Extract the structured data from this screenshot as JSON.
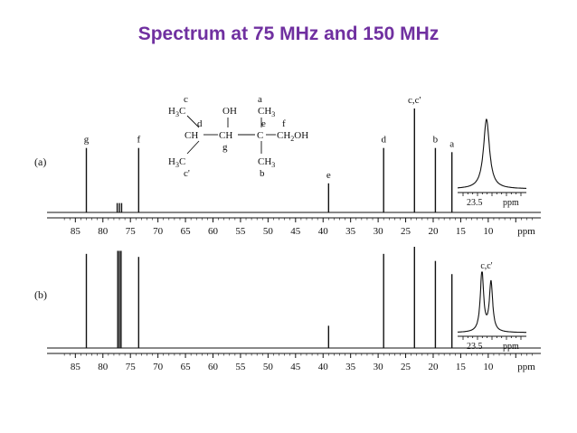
{
  "title": "Spectrum at 75 MHz and 150 MHz",
  "chart_data": [
    {
      "type": "line",
      "panel_label": "(a)",
      "x_unit": "ppm",
      "xlim": [
        87,
        2
      ],
      "x_ticks": [
        85,
        80,
        75,
        70,
        65,
        60,
        55,
        50,
        45,
        40,
        35,
        30,
        25,
        20,
        15,
        10
      ],
      "peaks": [
        {
          "ppm": 83.0,
          "height": 0.62,
          "label": "g"
        },
        {
          "ppm": 77.4,
          "height": 0.09,
          "label": ""
        },
        {
          "ppm": 77.0,
          "height": 0.09,
          "label": ""
        },
        {
          "ppm": 76.6,
          "height": 0.09,
          "label": ""
        },
        {
          "ppm": 73.5,
          "height": 0.62,
          "label": "f"
        },
        {
          "ppm": 39.0,
          "height": 0.28,
          "label": "e"
        },
        {
          "ppm": 29.0,
          "height": 0.62,
          "label": "d"
        },
        {
          "ppm": 23.4,
          "height": 1.0,
          "label": "c,c'"
        },
        {
          "ppm": 19.6,
          "height": 0.62,
          "label": "b"
        },
        {
          "ppm": 16.6,
          "height": 0.58,
          "label": "a"
        }
      ],
      "inset": {
        "peak_label": "",
        "x_tick": "23.5",
        "unit": "ppm",
        "type": "single"
      },
      "structure": {
        "row1": [
          "c",
          "a"
        ],
        "row2": [
          "H3C",
          "OH",
          "CH3"
        ],
        "row3": [
          "d",
          "e",
          "f"
        ],
        "row4": [
          "CH",
          "CH",
          "C",
          "CH2OH"
        ],
        "row5": [
          "g"
        ],
        "row6": [
          "H3C",
          "CH3"
        ],
        "row7": [
          "c'",
          "b"
        ]
      }
    },
    {
      "type": "line",
      "panel_label": "(b)",
      "x_unit": "ppm",
      "xlim": [
        87,
        2
      ],
      "x_ticks": [
        85,
        80,
        75,
        70,
        65,
        60,
        55,
        50,
        45,
        40,
        35,
        30,
        25,
        20,
        15,
        10
      ],
      "peaks": [
        {
          "ppm": 83.0,
          "height": 0.93
        },
        {
          "ppm": 77.3,
          "height": 0.96
        },
        {
          "ppm": 77.0,
          "height": 0.96
        },
        {
          "ppm": 76.7,
          "height": 0.96
        },
        {
          "ppm": 73.5,
          "height": 0.9
        },
        {
          "ppm": 39.0,
          "height": 0.22
        },
        {
          "ppm": 29.0,
          "height": 0.93
        },
        {
          "ppm": 23.4,
          "height": 1.0
        },
        {
          "ppm": 19.6,
          "height": 0.86
        },
        {
          "ppm": 16.6,
          "height": 0.73
        }
      ],
      "inset": {
        "peak_label": "c,c'",
        "x_tick": "23.5",
        "unit": "ppm",
        "type": "doublet"
      }
    }
  ]
}
